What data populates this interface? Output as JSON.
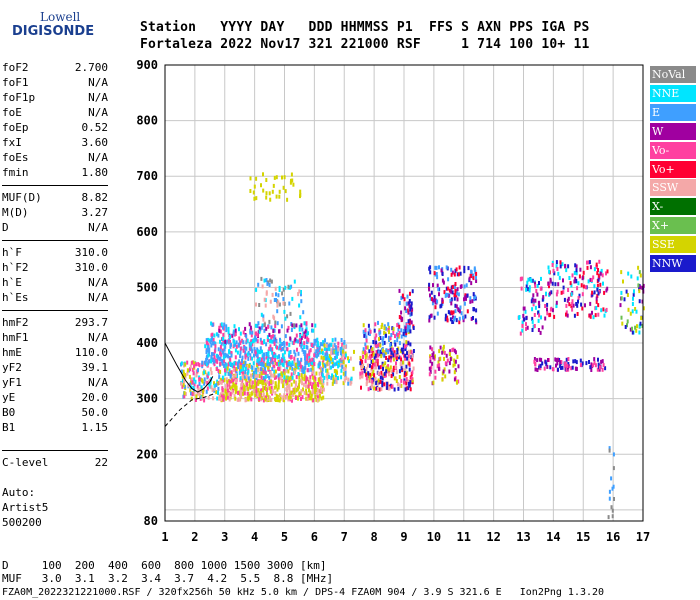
{
  "logo": {
    "top": "Lowell",
    "bottom": "DIGISONDE"
  },
  "header": {
    "line1": "Station   YYYY DAY   DDD HHMMSS P1  FFS S AXN PPS IGA PS",
    "line2": "Fortaleza 2022 Nov17 321 221000 RSF     1 714 100 10+ 11"
  },
  "params": [
    {
      "k": "foF2",
      "v": "2.700"
    },
    {
      "k": "foF1",
      "v": "N/A"
    },
    {
      "k": "foF1p",
      "v": "N/A"
    },
    {
      "k": "foE",
      "v": "N/A"
    },
    {
      "k": "foEp",
      "v": "0.52"
    },
    {
      "k": "fxI",
      "v": "3.60"
    },
    {
      "k": "foEs",
      "v": "N/A"
    },
    {
      "k": "fmin",
      "v": "1.80"
    },
    {
      "k": "MUF(D)",
      "v": "8.82"
    },
    {
      "k": "M(D)",
      "v": "3.27"
    },
    {
      "k": "D",
      "v": "N/A"
    },
    {
      "k": "h`F",
      "v": "310.0"
    },
    {
      "k": "h`F2",
      "v": "310.0"
    },
    {
      "k": "h`E",
      "v": "N/A"
    },
    {
      "k": "h`Es",
      "v": "N/A"
    },
    {
      "k": "hmF2",
      "v": "293.7"
    },
    {
      "k": "hmF1",
      "v": "N/A"
    },
    {
      "k": "hmE",
      "v": "110.0"
    },
    {
      "k": "yF2",
      "v": "39.1"
    },
    {
      "k": "yF1",
      "v": "N/A"
    },
    {
      "k": "yE",
      "v": "20.0"
    },
    {
      "k": "B0",
      "v": "50.0"
    },
    {
      "k": "B1",
      "v": "1.15"
    },
    {
      "k": "C-level",
      "v": "22"
    }
  ],
  "autoscale": {
    "l1": "Auto:",
    "l2": "Artist5",
    "l3": "500200"
  },
  "legend": [
    {
      "label": "NoVal",
      "color": "#8a8a8a"
    },
    {
      "label": "NNE",
      "color": "#00e5ff"
    },
    {
      "label": "E",
      "color": "#3f9fff"
    },
    {
      "label": "W",
      "color": "#a000a0"
    },
    {
      "label": "Vo-",
      "color": "#ff40a0"
    },
    {
      "label": "Vo+",
      "color": "#ff0033"
    },
    {
      "label": "SSW",
      "color": "#f4a8a8"
    },
    {
      "label": "X-",
      "color": "#007000"
    },
    {
      "label": "X+",
      "color": "#6abf4f"
    },
    {
      "label": "SSE",
      "color": "#d4d400"
    },
    {
      "label": "NNW",
      "color": "#1a1acc"
    }
  ],
  "footer": {
    "d_line": "D     100  200  400  600  800 1000 1500 3000 [km]",
    "muf_line": "MUF   3.0  3.1  3.2  3.4  3.7  4.2  5.5  8.8 [MHz]",
    "file_line": "FZA0M_2022321221000.RSF / 320fx256h 50 kHz 5.0 km / DPS-4 FZA0M 904 / 3.9 S 321.6 E   Ion2Png 1.3.20"
  },
  "chart_data": {
    "type": "scatter",
    "xlim": [
      1,
      17
    ],
    "ylim": [
      80,
      900
    ],
    "xticks": [
      "1",
      "2",
      "3",
      "4",
      "5",
      "6",
      "7",
      "8",
      "9",
      "10",
      "11",
      "12",
      "13",
      "14",
      "15",
      "16",
      "17"
    ],
    "yticks": [
      "900",
      "800",
      "700",
      "600",
      "500",
      "400",
      "300",
      "200",
      "80"
    ],
    "ytick_values": [
      900,
      800,
      700,
      600,
      500,
      400,
      300,
      200,
      80
    ],
    "grid": true,
    "legend_position": "right",
    "clusters": [
      {
        "x": [
          1.5,
          2.8
        ],
        "y": [
          300,
          370
        ],
        "n": 160,
        "colors": [
          "#d4d400",
          "#f4a8a8",
          "#00e5ff",
          "#3f9fff",
          "#ff40a0"
        ]
      },
      {
        "x": [
          2.8,
          6.3
        ],
        "y": [
          300,
          340
        ],
        "n": 420,
        "colors": [
          "#d4d400",
          "#f4a8a8",
          "#ff40a0",
          "#d4d400"
        ]
      },
      {
        "x": [
          2.8,
          6.3
        ],
        "y": [
          340,
          370
        ],
        "n": 300,
        "colors": [
          "#f4a8a8",
          "#ff40a0",
          "#d4d400",
          "#3f9fff",
          "#00e5ff"
        ]
      },
      {
        "x": [
          2.3,
          7.0
        ],
        "y": [
          365,
          410
        ],
        "n": 420,
        "colors": [
          "#3f9fff",
          "#00e5ff",
          "#3f9fff",
          "#ff40a0"
        ]
      },
      {
        "x": [
          2.5,
          6.0
        ],
        "y": [
          405,
          440
        ],
        "n": 140,
        "colors": [
          "#ff40a0",
          "#a000a0",
          "#3f9fff",
          "#00e5ff"
        ]
      },
      {
        "x": [
          4.0,
          5.6
        ],
        "y": [
          430,
          520
        ],
        "n": 70,
        "colors": [
          "#f4a8a8",
          "#00e5ff",
          "#3f9fff",
          "#8a8a8a"
        ]
      },
      {
        "x": [
          6.2,
          7.3
        ],
        "y": [
          330,
          400
        ],
        "n": 110,
        "colors": [
          "#d4d400",
          "#f4a8a8",
          "#3f9fff",
          "#00e5ff"
        ]
      },
      {
        "x": [
          7.5,
          9.3
        ],
        "y": [
          320,
          390
        ],
        "n": 260,
        "colors": [
          "#d4d400",
          "#f4a8a8",
          "#ff40a0",
          "#ff0033",
          "#1a1acc"
        ]
      },
      {
        "x": [
          7.6,
          9.2
        ],
        "y": [
          380,
          440
        ],
        "n": 140,
        "colors": [
          "#3f9fff",
          "#1a1acc",
          "#ff40a0",
          "#d4d400"
        ]
      },
      {
        "x": [
          8.8,
          9.3
        ],
        "y": [
          420,
          500
        ],
        "n": 45,
        "colors": [
          "#1a1acc",
          "#a000a0",
          "#ff0033",
          "#3f9fff"
        ]
      },
      {
        "x": [
          9.8,
          10.8
        ],
        "y": [
          330,
          400
        ],
        "n": 70,
        "colors": [
          "#d4d400",
          "#ff40a0",
          "#a000a0"
        ]
      },
      {
        "x": [
          9.8,
          11.4
        ],
        "y": [
          440,
          540
        ],
        "n": 170,
        "colors": [
          "#1a1acc",
          "#3f9fff",
          "#a000a0",
          "#ff0033"
        ]
      },
      {
        "x": [
          12.8,
          13.8
        ],
        "y": [
          420,
          520
        ],
        "n": 80,
        "colors": [
          "#00e5ff",
          "#a000a0",
          "#1a1acc",
          "#ff40a0"
        ]
      },
      {
        "x": [
          13.8,
          15.8
        ],
        "y": [
          450,
          550
        ],
        "n": 160,
        "colors": [
          "#a000a0",
          "#1a1acc",
          "#ff40a0",
          "#00e5ff",
          "#ff0033"
        ]
      },
      {
        "x": [
          13.3,
          15.7
        ],
        "y": [
          355,
          375
        ],
        "n": 90,
        "colors": [
          "#a000a0",
          "#ff40a0",
          "#1a1acc"
        ]
      },
      {
        "x": [
          16.2,
          17.0
        ],
        "y": [
          420,
          540
        ],
        "n": 55,
        "colors": [
          "#a000a0",
          "#6abf4f",
          "#1a1acc",
          "#d4d400",
          "#00e5ff"
        ]
      },
      {
        "x": [
          3.8,
          5.5
        ],
        "y": [
          660,
          710
        ],
        "n": 35,
        "colors": [
          "#d4d400"
        ]
      },
      {
        "x": [
          15.8,
          16.0
        ],
        "y": [
          90,
          230
        ],
        "n": 14,
        "colors": [
          "#3f9fff",
          "#8a8a8a"
        ]
      }
    ]
  }
}
